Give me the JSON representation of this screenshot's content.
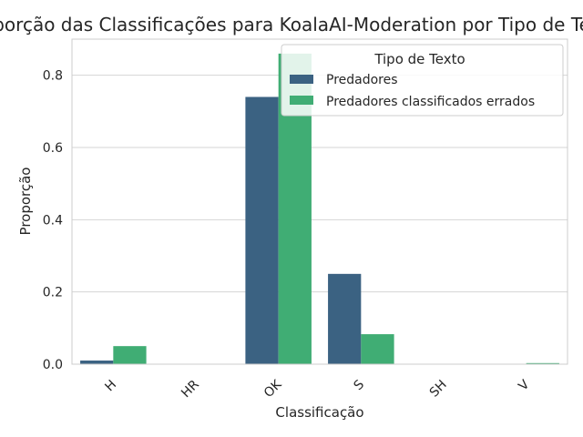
{
  "chart_data": {
    "type": "bar",
    "title": "Proporção das Classificações para KoalaAI-Moderation por Tipo de Texto",
    "xlabel": "Classificação",
    "ylabel": "Proporção",
    "categories": [
      "H",
      "HR",
      "OK",
      "S",
      "SH",
      "V"
    ],
    "series": [
      {
        "name": "Predadores",
        "color": "#3b6282",
        "values": [
          0.01,
          0.0,
          0.74,
          0.25,
          0.0,
          0.0
        ]
      },
      {
        "name": "Predadores classificados errados",
        "color": "#40ad74",
        "values": [
          0.05,
          0.0,
          0.86,
          0.083,
          0.0,
          0.003
        ]
      }
    ],
    "ylim": [
      0,
      0.9
    ],
    "yticks": [
      0.0,
      0.2,
      0.4,
      0.6,
      0.8
    ],
    "ytick_labels": [
      "0.0",
      "0.2",
      "0.4",
      "0.6",
      "0.8"
    ],
    "legend": {
      "title": "Tipo de Texto",
      "placement": "top-right"
    },
    "grid": "horizontal"
  }
}
